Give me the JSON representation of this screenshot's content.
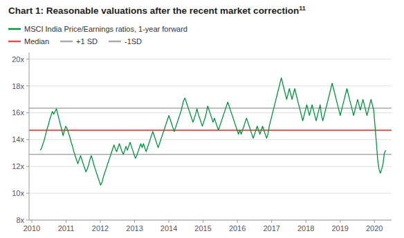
{
  "chart_data": {
    "type": "line",
    "title": "Chart 1: Reasonable valuations after the recent market correction",
    "annotations": [
      "11"
    ],
    "xlim": [
      2009.92,
      2020.5
    ],
    "xticks": [
      2010,
      2011,
      2012,
      2013,
      2014,
      2015,
      2016,
      2017,
      2018,
      2019,
      2020
    ],
    "ylim": [
      8,
      20.5
    ],
    "yticks": [
      {
        "value": 8,
        "label": "8x"
      },
      {
        "value": 10,
        "label": "10x"
      },
      {
        "value": 12,
        "label": "12x"
      },
      {
        "value": 14,
        "label": "14x"
      },
      {
        "value": 16,
        "label": "16x"
      },
      {
        "value": 18,
        "label": "18x"
      },
      {
        "value": 20,
        "label": "20x"
      }
    ],
    "grid": true,
    "x": [
      2010.25,
      2010.2891,
      2010.3281,
      2010.3672,
      2010.4063,
      2010.4453,
      2010.4844,
      2010.5235,
      2010.5626,
      2010.6016,
      2010.6407,
      2010.6798,
      2010.7188,
      2010.7579,
      2010.797,
      2010.836,
      2010.8751,
      2010.9142,
      2010.9533,
      2010.9923,
      2011.0314,
      2011.0705,
      2011.1095,
      2011.1486,
      2011.1877,
      2011.2267,
      2011.2658,
      2011.3049,
      2011.344,
      2011.383,
      2011.4221,
      2011.4612,
      2011.5002,
      2011.5393,
      2011.5784,
      2011.6174,
      2011.6565,
      2011.6956,
      2011.7347,
      2011.7737,
      2011.8128,
      2011.8519,
      2011.8909,
      2011.93,
      2011.9691,
      2012.0081,
      2012.0472,
      2012.0863,
      2012.1253,
      2012.1644,
      2012.2035,
      2012.2426,
      2012.2816,
      2012.3207,
      2012.3598,
      2012.3988,
      2012.4379,
      2012.477,
      2012.516,
      2012.5551,
      2012.5942,
      2012.6333,
      2012.6723,
      2012.7114,
      2012.7505,
      2012.7895,
      2012.8286,
      2012.8677,
      2012.9067,
      2012.9458,
      2012.9849,
      2013.024,
      2013.063,
      2013.1021,
      2013.1412,
      2013.1802,
      2013.2193,
      2013.2584,
      2013.2974,
      2013.3365,
      2013.3756,
      2013.4147,
      2013.4537,
      2013.4928,
      2013.5319,
      2013.5709,
      2013.61,
      2013.6491,
      2013.6881,
      2013.7272,
      2013.7663,
      2013.8053,
      2013.8444,
      2013.8835,
      2013.9226,
      2013.9616,
      2014.0007,
      2014.0398,
      2014.0788,
      2014.1179,
      2014.157,
      2014.196,
      2014.2351,
      2014.2742,
      2014.3133,
      2014.3523,
      2014.3914,
      2014.4305,
      2014.4695,
      2014.5086,
      2014.5477,
      2014.5867,
      2014.6258,
      2014.6649,
      2014.704,
      2014.743,
      2014.7821,
      2014.8212,
      2014.8602,
      2014.8993,
      2014.9384,
      2014.9774,
      2015.0165,
      2015.0556,
      2015.0947,
      2015.1337,
      2015.1728,
      2015.2119,
      2015.2509,
      2015.29,
      2015.3291,
      2015.3681,
      2015.4072,
      2015.4463,
      2015.4853,
      2015.5244,
      2015.5635,
      2015.6026,
      2015.6416,
      2015.6807,
      2015.7198,
      2015.7588,
      2015.7979,
      2015.837,
      2015.876,
      2015.9151,
      2015.9542,
      2015.9933,
      2016.0323,
      2016.0714,
      2016.1105,
      2016.1495,
      2016.1886,
      2016.2277,
      2016.2667,
      2016.3058,
      2016.3449,
      2016.384,
      2016.423,
      2016.4621,
      2016.5012,
      2016.5402,
      2016.5793,
      2016.6184,
      2016.6574,
      2016.6965,
      2016.7356,
      2016.7747,
      2016.8137,
      2016.8528,
      2016.8919,
      2016.9309,
      2016.97,
      2017.0091,
      2017.0481,
      2017.0872,
      2017.1263,
      2017.1653,
      2017.2044,
      2017.2435,
      2017.2826,
      2017.3216,
      2017.3607,
      2017.3998,
      2017.4388,
      2017.4779,
      2017.517,
      2017.556,
      2017.5951,
      2017.6342,
      2017.6733,
      2017.7123,
      2017.7514,
      2017.7905,
      2017.8295,
      2017.8686,
      2017.9077,
      2017.9467,
      2017.9858,
      2018.0249,
      2018.064,
      2018.103,
      2018.1421,
      2018.1812,
      2018.2202,
      2018.2593,
      2018.2984,
      2018.3374,
      2018.3765,
      2018.4156,
      2018.4547,
      2018.4937,
      2018.5328,
      2018.5719,
      2018.6109,
      2018.65,
      2018.6891,
      2018.7281,
      2018.7672,
      2018.8063,
      2018.8453,
      2018.8844,
      2018.9235,
      2018.9626,
      2019.0016,
      2019.0407,
      2019.0798,
      2019.1188,
      2019.1579,
      2019.197,
      2019.236,
      2019.2751,
      2019.3142,
      2019.3533,
      2019.3923,
      2019.4314,
      2019.4705,
      2019.5095,
      2019.5486,
      2019.5877,
      2019.6267,
      2019.6658,
      2019.7049,
      2019.744,
      2019.783,
      2019.8221,
      2019.8612,
      2019.9002,
      2019.9393,
      2019.9784,
      2020.0174,
      2020.0565,
      2020.0956,
      2020.1347,
      2020.1737,
      2020.2128,
      2020.2519,
      2020.2909,
      2020.33
    ],
    "series": [
      {
        "name": "MSCI India Price/Earnings ratios, 1-year forward",
        "color": "#00943f",
        "values": [
          13.2,
          13.4,
          13.7,
          14.0,
          14.4,
          14.8,
          15.1,
          15.5,
          15.8,
          16.1,
          15.9,
          16.1,
          16.3,
          15.9,
          15.5,
          15.1,
          14.7,
          14.3,
          14.7,
          15.0,
          14.8,
          14.5,
          14.2,
          13.8,
          13.5,
          13.1,
          12.8,
          12.5,
          12.2,
          12.5,
          12.8,
          12.5,
          12.2,
          11.9,
          11.6,
          11.8,
          12.1,
          12.5,
          12.8,
          12.5,
          12.1,
          11.8,
          11.5,
          11.2,
          10.9,
          10.6,
          10.8,
          11.2,
          11.5,
          11.8,
          12.1,
          12.4,
          12.7,
          13.0,
          13.3,
          13.6,
          13.3,
          13.1,
          13.4,
          13.7,
          13.4,
          13.1,
          12.9,
          13.2,
          13.5,
          13.2,
          13.5,
          13.8,
          13.5,
          13.2,
          12.9,
          12.6,
          12.8,
          13.1,
          13.4,
          13.7,
          13.4,
          13.7,
          13.4,
          13.1,
          13.4,
          13.7,
          14.0,
          14.3,
          14.6,
          14.3,
          14.0,
          13.7,
          13.4,
          13.7,
          14.0,
          14.3,
          14.6,
          14.9,
          15.2,
          15.5,
          15.8,
          15.5,
          15.2,
          14.9,
          14.6,
          14.9,
          15.2,
          15.5,
          15.8,
          16.1,
          16.5,
          16.9,
          17.1,
          16.8,
          16.5,
          16.2,
          15.9,
          15.6,
          15.3,
          15.6,
          15.9,
          16.3,
          15.9,
          15.6,
          15.3,
          15.0,
          15.3,
          15.6,
          16.0,
          16.5,
          16.2,
          15.9,
          15.6,
          15.3,
          15.6,
          15.3,
          15.0,
          14.7,
          15.0,
          15.3,
          15.6,
          15.9,
          16.2,
          16.5,
          16.8,
          16.5,
          16.2,
          15.9,
          15.6,
          15.3,
          15.0,
          14.7,
          14.4,
          14.7,
          14.4,
          14.7,
          15.0,
          15.3,
          15.6,
          15.3,
          15.0,
          14.7,
          14.4,
          14.1,
          14.4,
          14.7,
          15.0,
          14.7,
          14.4,
          14.7,
          15.0,
          14.7,
          14.4,
          14.1,
          14.4,
          15.0,
          15.4,
          15.8,
          16.2,
          16.6,
          17.0,
          17.4,
          17.8,
          18.2,
          18.6,
          18.2,
          17.8,
          17.4,
          17.0,
          17.4,
          17.8,
          17.4,
          17.0,
          17.4,
          17.8,
          17.4,
          17.0,
          16.6,
          16.2,
          15.8,
          15.4,
          15.8,
          16.2,
          16.6,
          16.2,
          15.8,
          16.2,
          16.6,
          16.2,
          15.8,
          15.4,
          15.8,
          16.2,
          16.6,
          15.8,
          15.4,
          15.8,
          16.2,
          16.6,
          17.0,
          17.4,
          17.8,
          18.2,
          17.8,
          17.4,
          17.0,
          16.6,
          16.2,
          15.8,
          16.2,
          16.6,
          17.0,
          17.4,
          17.8,
          17.4,
          17.0,
          16.6,
          16.2,
          15.8,
          16.2,
          16.6,
          17.0,
          16.6,
          16.2,
          16.6,
          17.0,
          16.6,
          16.2,
          15.8,
          16.2,
          16.6,
          17.0,
          16.6,
          16.2,
          15.0,
          13.8,
          12.5,
          11.8,
          11.5,
          11.8,
          12.2,
          13.0,
          13.2
        ]
      },
      {
        "name": "Median",
        "type": "hline",
        "color": "#d9534f",
        "value": 14.7
      },
      {
        "name": "+1 SD",
        "type": "hline",
        "color": "#aaaaaa",
        "value": 16.35
      },
      {
        "name": "-1SD",
        "type": "hline",
        "color": "#aaaaaa",
        "value": 12.9
      }
    ]
  }
}
